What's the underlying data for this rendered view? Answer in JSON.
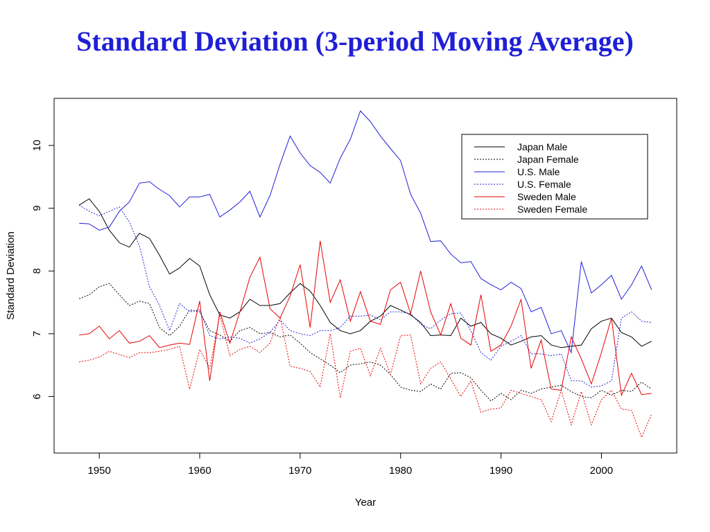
{
  "slide": {
    "title": "Standard Deviation (3-period Moving Average)"
  },
  "chart_data": {
    "type": "line",
    "title": "",
    "xlabel": "Year",
    "ylabel": "Standard Deviation",
    "xlim": [
      1945.5,
      2007.5
    ],
    "ylim": [
      5.1,
      10.75
    ],
    "x_ticks": [
      1950,
      1960,
      1970,
      1980,
      1990,
      2000
    ],
    "y_ticks": [
      6,
      7,
      8,
      9,
      10
    ],
    "grid": false,
    "legend": {
      "position": "top-right"
    },
    "series": [
      {
        "name": "Japan Male",
        "color": "#000000",
        "dash": "solid",
        "x": [
          1948,
          1949,
          1950,
          1951,
          1952,
          1953,
          1954,
          1955,
          1956,
          1957,
          1958,
          1959,
          1960,
          1961,
          1962,
          1963,
          1964,
          1965,
          1966,
          1967,
          1968,
          1969,
          1970,
          1971,
          1972,
          1973,
          1974,
          1975,
          1976,
          1977,
          1978,
          1979,
          1980,
          1981,
          1982,
          1983,
          1984,
          1985,
          1986,
          1987,
          1988,
          1989,
          1990,
          1991,
          1992,
          1993,
          1994,
          1995,
          1996,
          1997,
          1998,
          1999,
          2000,
          2001,
          2002,
          2003,
          2004,
          2005
        ],
        "y": [
          9.05,
          9.15,
          8.95,
          8.65,
          8.45,
          8.38,
          8.6,
          8.52,
          8.25,
          7.95,
          8.05,
          8.2,
          8.08,
          7.62,
          7.3,
          7.25,
          7.35,
          7.55,
          7.45,
          7.45,
          7.48,
          7.65,
          7.8,
          7.68,
          7.45,
          7.18,
          7.05,
          7.0,
          7.05,
          7.2,
          7.28,
          7.45,
          7.38,
          7.3,
          7.18,
          6.97,
          6.98,
          6.97,
          7.25,
          7.12,
          7.18,
          7.0,
          6.93,
          6.82,
          6.88,
          6.95,
          6.97,
          6.82,
          6.78,
          6.8,
          6.82,
          7.08,
          7.2,
          7.25,
          7.02,
          6.95,
          6.8,
          6.88
        ]
      },
      {
        "name": "Japan Female",
        "color": "#000000",
        "dash": "dotted",
        "x": [
          1948,
          1949,
          1950,
          1951,
          1952,
          1953,
          1954,
          1955,
          1956,
          1957,
          1958,
          1959,
          1960,
          1961,
          1962,
          1963,
          1964,
          1965,
          1966,
          1967,
          1968,
          1969,
          1970,
          1971,
          1972,
          1973,
          1974,
          1975,
          1976,
          1977,
          1978,
          1979,
          1980,
          1981,
          1982,
          1983,
          1984,
          1985,
          1986,
          1987,
          1988,
          1989,
          1990,
          1991,
          1992,
          1993,
          1994,
          1995,
          1996,
          1997,
          1998,
          1999,
          2000,
          2001,
          2002,
          2003,
          2004,
          2005
        ],
        "y": [
          7.56,
          7.62,
          7.75,
          7.8,
          7.62,
          7.45,
          7.52,
          7.48,
          7.1,
          6.97,
          7.12,
          7.38,
          7.35,
          7.05,
          6.98,
          6.88,
          7.05,
          7.1,
          7.0,
          7.02,
          6.95,
          6.98,
          6.85,
          6.7,
          6.6,
          6.5,
          6.38,
          6.5,
          6.52,
          6.55,
          6.5,
          6.35,
          6.15,
          6.1,
          6.08,
          6.2,
          6.12,
          6.37,
          6.38,
          6.3,
          6.1,
          5.93,
          6.05,
          5.95,
          6.1,
          6.05,
          6.12,
          6.15,
          6.18,
          6.08,
          6.0,
          5.98,
          6.1,
          6.02,
          6.1,
          6.08,
          6.23,
          6.12
        ]
      },
      {
        "name": "U.S. Male",
        "color": "#1f1fd6",
        "dash": "solid",
        "x": [
          1948,
          1949,
          1950,
          1951,
          1952,
          1953,
          1954,
          1955,
          1956,
          1957,
          1958,
          1959,
          1960,
          1961,
          1962,
          1963,
          1964,
          1965,
          1966,
          1967,
          1968,
          1969,
          1970,
          1971,
          1972,
          1973,
          1974,
          1975,
          1976,
          1977,
          1978,
          1979,
          1980,
          1981,
          1982,
          1983,
          1984,
          1985,
          1986,
          1987,
          1988,
          1989,
          1990,
          1991,
          1992,
          1993,
          1994,
          1995,
          1996,
          1997,
          1998,
          1999,
          2000,
          2001,
          2002,
          2003,
          2004,
          2005
        ],
        "y": [
          8.76,
          8.75,
          8.65,
          8.7,
          8.95,
          9.1,
          9.4,
          9.42,
          9.3,
          9.2,
          9.02,
          9.18,
          9.18,
          9.22,
          8.86,
          8.97,
          9.1,
          9.27,
          8.86,
          9.2,
          9.7,
          10.15,
          9.88,
          9.68,
          9.57,
          9.4,
          9.8,
          10.1,
          10.55,
          10.38,
          10.15,
          9.95,
          9.76,
          9.22,
          8.92,
          8.47,
          8.48,
          8.27,
          8.13,
          8.15,
          7.88,
          7.78,
          7.7,
          7.82,
          7.72,
          7.35,
          7.42,
          7.0,
          7.05,
          6.7,
          8.15,
          7.65,
          7.78,
          7.93,
          7.55,
          7.78,
          8.08,
          7.7
        ]
      },
      {
        "name": "U.S. Female",
        "color": "#1f1fd6",
        "dash": "dotted",
        "x": [
          1948,
          1949,
          1950,
          1951,
          1952,
          1953,
          1954,
          1955,
          1956,
          1957,
          1958,
          1959,
          1960,
          1961,
          1962,
          1963,
          1964,
          1965,
          1966,
          1967,
          1968,
          1969,
          1970,
          1971,
          1972,
          1973,
          1974,
          1975,
          1976,
          1977,
          1978,
          1979,
          1980,
          1981,
          1982,
          1983,
          1984,
          1985,
          1986,
          1987,
          1988,
          1989,
          1990,
          1991,
          1992,
          1993,
          1994,
          1995,
          1996,
          1997,
          1998,
          1999,
          2000,
          2001,
          2002,
          2003,
          2004,
          2005
        ],
        "y": [
          9.05,
          8.95,
          8.88,
          8.95,
          9.02,
          8.78,
          8.4,
          7.75,
          7.45,
          7.05,
          7.48,
          7.35,
          7.38,
          6.97,
          6.92,
          6.95,
          6.93,
          6.85,
          6.92,
          7.02,
          7.22,
          7.05,
          7.0,
          6.97,
          7.05,
          7.05,
          7.1,
          7.28,
          7.28,
          7.3,
          7.22,
          7.35,
          7.35,
          7.32,
          7.15,
          7.08,
          7.22,
          7.32,
          7.33,
          7.05,
          6.7,
          6.58,
          6.8,
          6.88,
          6.97,
          6.68,
          6.68,
          6.65,
          6.68,
          6.25,
          6.25,
          6.15,
          6.17,
          6.25,
          7.25,
          7.35,
          7.2,
          7.18
        ]
      },
      {
        "name": "Sweden Male",
        "color": "#e60000",
        "dash": "solid",
        "x": [
          1948,
          1949,
          1950,
          1951,
          1952,
          1953,
          1954,
          1955,
          1956,
          1957,
          1958,
          1959,
          1960,
          1961,
          1962,
          1963,
          1964,
          1965,
          1966,
          1967,
          1968,
          1969,
          1970,
          1971,
          1972,
          1973,
          1974,
          1975,
          1976,
          1977,
          1978,
          1979,
          1980,
          1981,
          1982,
          1983,
          1984,
          1985,
          1986,
          1987,
          1988,
          1989,
          1990,
          1991,
          1992,
          1993,
          1994,
          1995,
          1996,
          1997,
          1998,
          1999,
          2000,
          2001,
          2002,
          2003,
          2004,
          2005
        ],
        "y": [
          6.98,
          7.0,
          7.12,
          6.92,
          7.05,
          6.85,
          6.88,
          6.97,
          6.78,
          6.82,
          6.85,
          6.83,
          7.52,
          6.25,
          7.35,
          6.85,
          7.35,
          7.9,
          8.22,
          7.4,
          7.25,
          7.6,
          8.1,
          7.1,
          8.48,
          7.5,
          7.86,
          7.2,
          7.67,
          7.2,
          7.15,
          7.7,
          7.82,
          7.32,
          8.0,
          7.35,
          6.98,
          7.48,
          6.93,
          6.82,
          7.62,
          6.72,
          6.82,
          7.12,
          7.55,
          6.45,
          6.9,
          6.12,
          6.1,
          6.95,
          6.6,
          6.2,
          6.7,
          7.25,
          6.02,
          6.37,
          6.03,
          6.05
        ]
      },
      {
        "name": "Sweden Female",
        "color": "#e60000",
        "dash": "dotted",
        "x": [
          1948,
          1949,
          1950,
          1951,
          1952,
          1953,
          1954,
          1955,
          1956,
          1957,
          1958,
          1959,
          1960,
          1961,
          1962,
          1963,
          1964,
          1965,
          1966,
          1967,
          1968,
          1969,
          1970,
          1971,
          1972,
          1973,
          1974,
          1975,
          1976,
          1977,
          1978,
          1979,
          1980,
          1981,
          1982,
          1983,
          1984,
          1985,
          1986,
          1987,
          1988,
          1989,
          1990,
          1991,
          1992,
          1993,
          1994,
          1995,
          1996,
          1997,
          1998,
          1999,
          2000,
          2001,
          2002,
          2003,
          2004,
          2005
        ],
        "y": [
          6.55,
          6.58,
          6.63,
          6.72,
          6.67,
          6.62,
          6.7,
          6.7,
          6.72,
          6.75,
          6.8,
          6.12,
          6.75,
          6.45,
          7.3,
          6.65,
          6.75,
          6.8,
          6.7,
          6.85,
          7.27,
          6.48,
          6.45,
          6.4,
          6.15,
          7.0,
          5.98,
          6.72,
          6.77,
          6.33,
          6.77,
          6.35,
          6.97,
          6.98,
          6.2,
          6.45,
          6.55,
          6.28,
          6.0,
          6.25,
          5.75,
          5.8,
          5.82,
          6.1,
          6.05,
          6.0,
          5.95,
          5.6,
          6.1,
          5.55,
          6.08,
          5.55,
          5.95,
          6.1,
          5.8,
          5.78,
          5.35,
          5.72
        ]
      }
    ]
  }
}
